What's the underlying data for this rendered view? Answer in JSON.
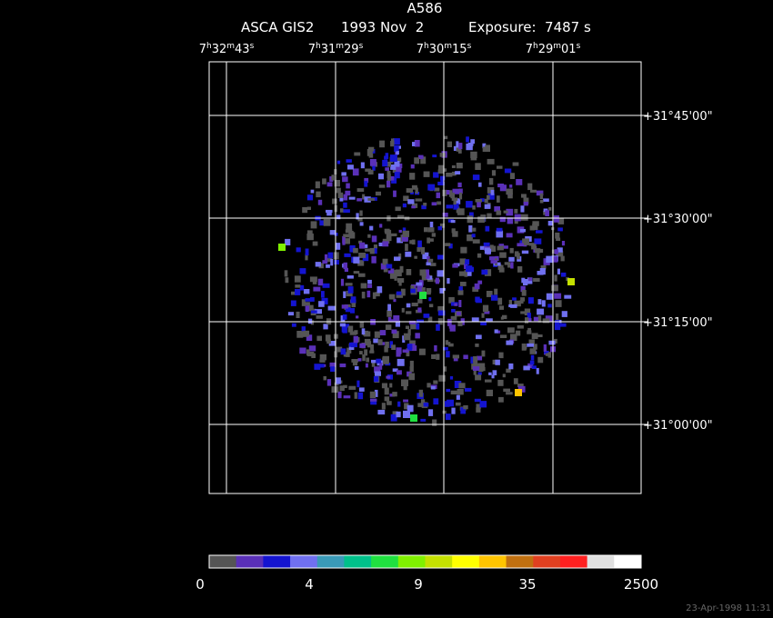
{
  "title": "A586",
  "subtitle": [
    "ASCA GIS2",
    "1993 Nov  2",
    "Exposure:  7487 s"
  ],
  "ra_labels": [
    [
      "7",
      "h",
      "32",
      "m",
      "43",
      "s"
    ],
    [
      "7",
      "h",
      "31",
      "m",
      "29",
      "s"
    ],
    [
      "7",
      "h",
      "30",
      "m",
      "15",
      "s"
    ],
    [
      "7",
      "h",
      "29",
      "m",
      "01",
      "s"
    ]
  ],
  "dec_labels": [
    "+31°45'00\"",
    "+31°30'00\"",
    "+31°15'00\"",
    "+31°00'00\""
  ],
  "colorbar": {
    "colors": [
      "#555555",
      "#5a30b8",
      "#1414d0",
      "#7070f0",
      "#3a9ab8",
      "#00c08a",
      "#20e040",
      "#80f000",
      "#c4e000",
      "#ffff00",
      "#ffc400",
      "#c07010",
      "#e04020",
      "#ff2020",
      "#e0e0e0",
      "#ffffff"
    ],
    "labels": [
      0,
      4,
      9,
      35,
      2500
    ]
  },
  "timestamp": "23-Apr-1998 11:31"
}
